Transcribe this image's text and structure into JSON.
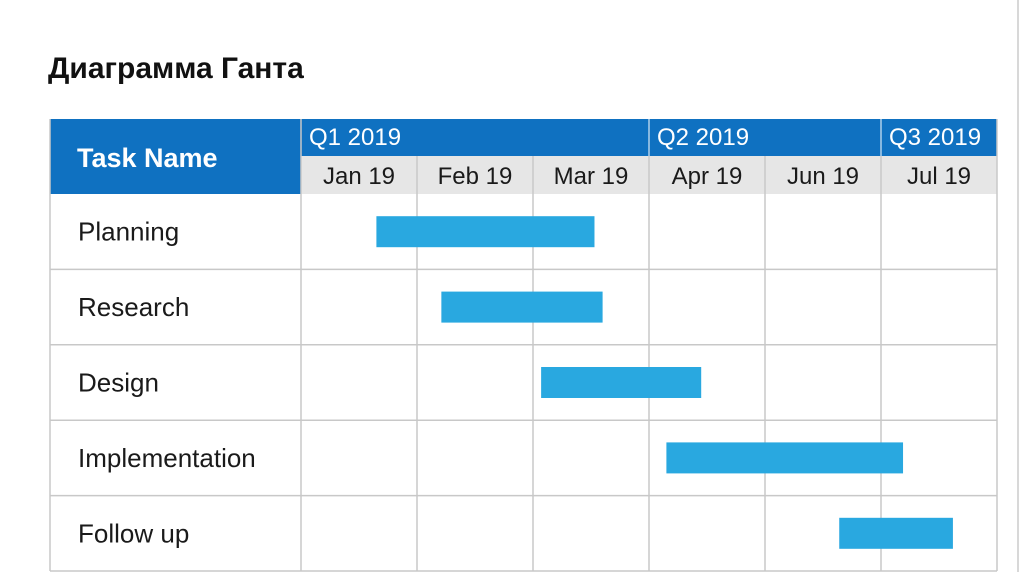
{
  "slide": {
    "title": "Диаграмма Ганта"
  },
  "colors": {
    "header_blue": "#0f71c1",
    "month_row_bg": "#e6e6e6",
    "bar": "#29a8e0",
    "grid": "#c8c8c8",
    "text": "#1a1a1a"
  },
  "chart_data": {
    "type": "gantt",
    "task_column_header": "Task Name",
    "quarters": [
      {
        "label": "Q1 2019",
        "start_month": 0
      },
      {
        "label": "Q2 2019",
        "start_month": 3
      },
      {
        "label": "Q3 2019",
        "start_month": 5
      }
    ],
    "months": [
      "Jan 19",
      "Feb 19",
      "Mar 19",
      "Apr 19",
      "Jun 19",
      "Jul 19"
    ],
    "tasks": [
      {
        "name": "Planning",
        "start": 0.65,
        "end": 2.53
      },
      {
        "name": "Research",
        "start": 1.21,
        "end": 2.6
      },
      {
        "name": "Design",
        "start": 2.07,
        "end": 3.45
      },
      {
        "name": "Implementation",
        "start": 3.15,
        "end": 5.19
      },
      {
        "name": "Follow up",
        "start": 4.64,
        "end": 5.62
      }
    ]
  }
}
